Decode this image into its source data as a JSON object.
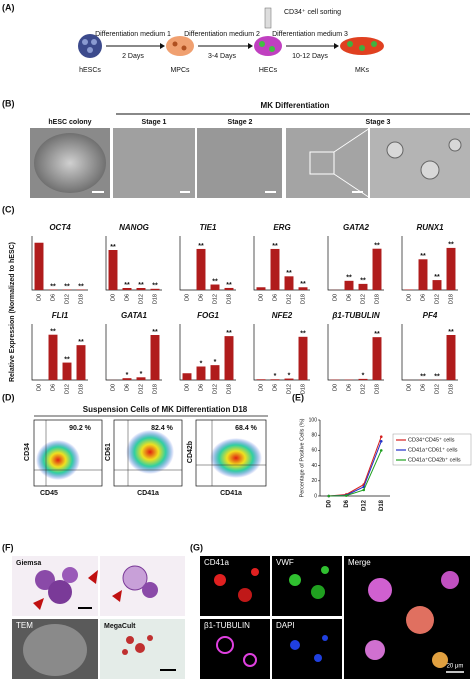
{
  "panel_labels": [
    "(A)",
    "(B)",
    "(C)",
    "(D)",
    "(E)",
    "(F)",
    "(G)"
  ],
  "panel_a": {
    "cells": [
      "hESCs",
      "MPCs",
      "HECs",
      "MKs"
    ],
    "steps": [
      {
        "label": "Differentiation medium 1",
        "time": "2 Days"
      },
      {
        "label": "Differentiation medium 2",
        "time": "3-4 Days"
      },
      {
        "label": "Differentiation medium 3",
        "time": "10-12 Days"
      }
    ],
    "sorting": "CD34⁺ cell sorting"
  },
  "panel_b": {
    "header": "MK Differentiation",
    "images": [
      "hESC colony",
      "Stage 1",
      "Stage 2",
      "Stage 3"
    ]
  },
  "panel_c": {
    "y_label": "Relative Expression (Normalized to hESC)"
  },
  "chart_data": [
    {
      "type": "bar",
      "title": "OCT4",
      "categories": [
        "D0",
        "D6",
        "D12",
        "D18"
      ],
      "values": [
        1,
        0.01,
        0.01,
        0.01
      ],
      "annotations": [
        null,
        "**",
        "**",
        "**"
      ],
      "ylim": [
        0,
        1.1
      ],
      "color": "#b01c1c"
    },
    {
      "type": "bar",
      "title": "NANOG",
      "categories": [
        "D0",
        "D6",
        "D12",
        "D18"
      ],
      "values": [
        1,
        0.05,
        0.05,
        0.03
      ],
      "annotations": [
        "**",
        "**",
        "**",
        "**"
      ],
      "ylim": [
        0,
        1.3
      ],
      "color": "#b01c1c"
    },
    {
      "type": "bar",
      "title": "TIE1",
      "categories": [
        "D0",
        "D6",
        "D12",
        "D18"
      ],
      "values": [
        1,
        3000,
        400,
        150
      ],
      "annotations": [
        null,
        "**",
        "**",
        "**"
      ],
      "ylim": [
        0,
        3800
      ],
      "color": "#b01c1c"
    },
    {
      "type": "bar",
      "title": "ERG",
      "categories": [
        "D0",
        "D6",
        "D12",
        "D18"
      ],
      "values": [
        1,
        15,
        5,
        1
      ],
      "annotations": [
        null,
        "**",
        "**",
        "**"
      ],
      "ylim": [
        0,
        19
      ],
      "color": "#b01c1c"
    },
    {
      "type": "bar",
      "title": "GATA2",
      "categories": [
        "D0",
        "D6",
        "D12",
        "D18"
      ],
      "values": [
        1,
        60,
        40,
        270
      ],
      "annotations": [
        null,
        "**",
        "**",
        "**"
      ],
      "ylim": [
        0,
        340
      ],
      "color": "#b01c1c"
    },
    {
      "type": "bar",
      "title": "RUNX1",
      "categories": [
        "D0",
        "D6",
        "D12",
        "D18"
      ],
      "values": [
        1,
        62,
        20,
        85
      ],
      "annotations": [
        null,
        "**",
        "**",
        "**"
      ],
      "ylim": [
        0,
        105
      ],
      "color": "#b01c1c"
    },
    {
      "type": "bar",
      "title": "FLI1",
      "categories": [
        "D0",
        "D6",
        "D12",
        "D18"
      ],
      "values": [
        1,
        2600,
        1000,
        2000
      ],
      "annotations": [
        null,
        "**",
        "**",
        "**"
      ],
      "ylim": [
        0,
        3100
      ],
      "color": "#b01c1c"
    },
    {
      "type": "bar",
      "title": "GATA1",
      "categories": [
        "D0",
        "D6",
        "D12",
        "D18"
      ],
      "values": [
        1,
        20,
        30,
        500
      ],
      "annotations": [
        null,
        "*",
        "*",
        "**"
      ],
      "ylim": [
        0,
        600
      ],
      "color": "#b01c1c"
    },
    {
      "type": "bar",
      "title": "FOG1",
      "categories": [
        "D0",
        "D6",
        "D12",
        "D18"
      ],
      "values": [
        1,
        2,
        2.2,
        6.5
      ],
      "annotations": [
        null,
        "*",
        "*",
        "**"
      ],
      "ylim": [
        0,
        8
      ],
      "color": "#b01c1c"
    },
    {
      "type": "bar",
      "title": "NFE2",
      "categories": [
        "D0",
        "D6",
        "D12",
        "D18"
      ],
      "values": [
        1,
        1,
        2,
        60
      ],
      "annotations": [
        null,
        "*",
        "*",
        "**"
      ],
      "ylim": [
        0,
        75
      ],
      "color": "#b01c1c"
    },
    {
      "type": "bar",
      "title": "β1-TUBULIN",
      "categories": [
        "D0",
        "D6",
        "D12",
        "D18"
      ],
      "values": [
        1,
        1,
        3,
        115
      ],
      "annotations": [
        null,
        null,
        "*",
        "**"
      ],
      "ylim": [
        0,
        145
      ],
      "color": "#b01c1c"
    },
    {
      "type": "bar",
      "title": "PF4",
      "categories": [
        "D0",
        "D6",
        "D12",
        "D18"
      ],
      "values": [
        1,
        3,
        3,
        750
      ],
      "annotations": [
        null,
        "**",
        "**",
        "**"
      ],
      "ylim": [
        0,
        900
      ],
      "color": "#b01c1c"
    },
    {
      "type": "line",
      "y_label": "Percentage of Positive Cells (%)",
      "categories": [
        "D0",
        "D6",
        "D12",
        "D18"
      ],
      "series": [
        {
          "name": "CD34⁺CD45⁺ cells",
          "color": "#d42020",
          "values": [
            0,
            2,
            15,
            78
          ]
        },
        {
          "name": "CD41a⁺CD61⁺ cells",
          "color": "#2030c8",
          "values": [
            0,
            1,
            12,
            72
          ]
        },
        {
          "name": "CD41a⁺CD42b⁺ cells",
          "color": "#20a020",
          "values": [
            0,
            0.5,
            8,
            60
          ]
        }
      ],
      "ylim": [
        0,
        100
      ],
      "yticks": [
        0,
        20,
        40,
        60,
        80,
        100
      ]
    }
  ],
  "panel_d": {
    "title": "Suspension Cells of MK Differentiation D18",
    "plots": [
      {
        "percent": "90.2 %",
        "y_label": "CD34",
        "x_label": "CD45"
      },
      {
        "percent": "82.4 %",
        "y_label": "CD61",
        "x_label": "CD41a"
      },
      {
        "percent": "68.4 %",
        "y_label": "CD42b",
        "x_label": "CD41a"
      }
    ]
  },
  "panel_f": {
    "images": [
      "Giemsa",
      "TEM",
      "MegaCult"
    ]
  },
  "panel_g": {
    "images": [
      "CD41a",
      "VWF",
      "Merge",
      "β1-TUBULIN",
      "DAPI"
    ],
    "scale": "20 μm"
  }
}
